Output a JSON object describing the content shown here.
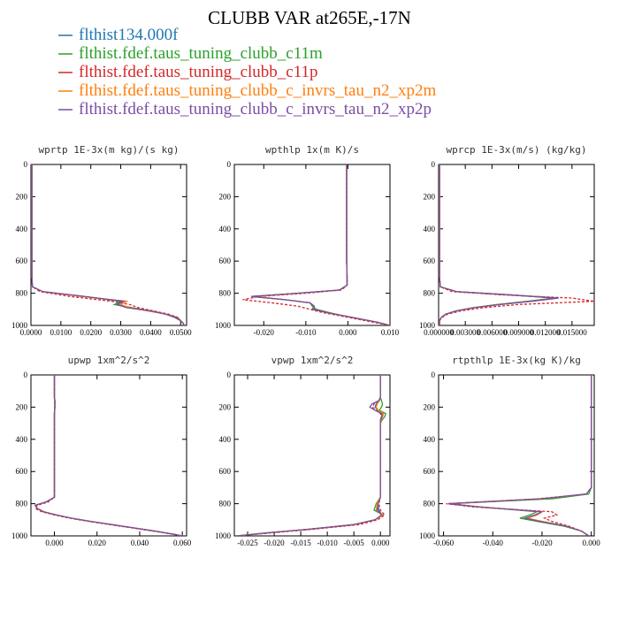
{
  "figure": {
    "title": "CLUBB VAR at265E,-17N"
  },
  "legend": [
    {
      "name": "flthist134.000f",
      "color": "#1f77b4"
    },
    {
      "name": "flthist.fdef.taus_tuning_clubb_c11m",
      "color": "#2ca02c"
    },
    {
      "name": "flthist.fdef.taus_tuning_clubb_c11p",
      "color": "#d62728"
    },
    {
      "name": "flthist.fdef.taus_tuning_clubb_c_invrs_tau_n2_xp2m",
      "color": "#ff7f0e"
    },
    {
      "name": "flthist.fdef.taus_tuning_clubb_c_invrs_tau_n2_xp2p",
      "color": "#7b4ea3"
    }
  ],
  "chart_data": [
    {
      "type": "line",
      "title": "wprtp  1E-3x(m kg)/(s kg)",
      "xlim": [
        0,
        0.052
      ],
      "ylim": [
        1000,
        0
      ],
      "xticks": [
        0,
        0.01,
        0.02,
        0.03,
        0.04,
        0.05
      ],
      "xtick_labels": [
        "0.0000",
        "0.0100",
        "0.0200",
        "0.0300",
        "0.0400",
        "0.0500"
      ],
      "yticks": [
        0,
        200,
        400,
        600,
        800,
        1000
      ],
      "ytick_labels": [
        "0",
        "200",
        "400",
        "600",
        "800",
        "1000"
      ],
      "y": [
        0,
        100,
        200,
        300,
        400,
        500,
        600,
        700,
        760,
        790,
        820,
        850,
        870,
        890,
        910,
        930,
        950,
        970,
        990,
        1000
      ],
      "series": [
        {
          "values": [
            0.0003,
            0.0003,
            0.0003,
            0.0003,
            0.0003,
            0.0003,
            0.0003,
            0.0003,
            0.0005,
            0.004,
            0.018,
            0.03,
            0.028,
            0.033,
            0.04,
            0.045,
            0.048,
            0.05,
            0.051,
            0.051
          ]
        },
        {
          "values": [
            0.0003,
            0.0003,
            0.0003,
            0.0003,
            0.0003,
            0.0003,
            0.0003,
            0.0003,
            0.0005,
            0.004,
            0.017,
            0.031,
            0.028,
            0.034,
            0.04,
            0.045,
            0.049,
            0.05,
            0.051,
            0.051
          ]
        },
        {
          "values": [
            0.0003,
            0.0003,
            0.0003,
            0.0003,
            0.0003,
            0.0003,
            0.0003,
            0.0003,
            0.0005,
            0.003,
            0.013,
            0.027,
            0.033,
            0.036,
            0.041,
            0.046,
            0.049,
            0.05,
            0.051,
            0.051
          ]
        },
        {
          "values": [
            0.0003,
            0.0003,
            0.0003,
            0.0003,
            0.0003,
            0.0003,
            0.0003,
            0.0003,
            0.0005,
            0.004,
            0.017,
            0.032,
            0.03,
            0.033,
            0.039,
            0.045,
            0.048,
            0.05,
            0.051,
            0.051
          ]
        },
        {
          "values": [
            0.0003,
            0.0003,
            0.0003,
            0.0003,
            0.0003,
            0.0003,
            0.0003,
            0.0003,
            0.0005,
            0.004,
            0.018,
            0.031,
            0.029,
            0.032,
            0.04,
            0.045,
            0.048,
            0.05,
            0.051,
            0.051
          ]
        }
      ]
    },
    {
      "type": "line",
      "title": "wpthlp  1x(m K)/s",
      "xlim": [
        -0.027,
        0.01
      ],
      "ylim": [
        1000,
        0
      ],
      "xticks": [
        -0.02,
        -0.01,
        0,
        0.01
      ],
      "xtick_labels": [
        "-0.020",
        "-0.010",
        "0.000",
        "0.010"
      ],
      "yticks": [
        0,
        200,
        400,
        600,
        800,
        1000
      ],
      "ytick_labels": [
        "0",
        "200",
        "400",
        "600",
        "800",
        "1000"
      ],
      "y": [
        0,
        100,
        200,
        300,
        400,
        500,
        600,
        700,
        750,
        780,
        800,
        820,
        840,
        860,
        880,
        900,
        920,
        940,
        960,
        980,
        1000
      ],
      "series": [
        {
          "values": [
            -0.0003,
            -0.0003,
            -0.0003,
            -0.0003,
            -0.0003,
            -0.0003,
            -0.0003,
            -0.0002,
            -0.0002,
            -0.002,
            -0.012,
            -0.023,
            -0.015,
            -0.009,
            -0.008,
            -0.0085,
            -0.005,
            -0.001,
            0.003,
            0.007,
            0.01
          ]
        },
        {
          "values": [
            -0.0003,
            -0.0003,
            -0.0003,
            -0.0003,
            -0.0003,
            -0.0003,
            -0.0003,
            -0.0002,
            -0.0002,
            -0.002,
            -0.012,
            -0.023,
            -0.015,
            -0.009,
            -0.0085,
            -0.0075,
            -0.0045,
            -0.001,
            0.003,
            0.007,
            0.01
          ]
        },
        {
          "values": [
            -0.0003,
            -0.0003,
            -0.0003,
            -0.0003,
            -0.0003,
            -0.0003,
            -0.0003,
            -0.0002,
            -0.0002,
            -0.0015,
            -0.01,
            -0.021,
            -0.025,
            -0.018,
            -0.012,
            -0.009,
            -0.006,
            -0.002,
            0.002,
            0.006,
            0.01
          ]
        },
        {
          "values": [
            -0.0003,
            -0.0003,
            -0.0003,
            -0.0003,
            -0.0003,
            -0.0003,
            -0.0003,
            -0.0002,
            -0.0002,
            -0.002,
            -0.012,
            -0.022,
            -0.015,
            -0.009,
            -0.008,
            -0.008,
            -0.005,
            -0.001,
            0.003,
            0.007,
            0.01
          ]
        },
        {
          "values": [
            -0.0003,
            -0.0003,
            -0.0003,
            -0.0003,
            -0.0003,
            -0.0003,
            -0.0003,
            -0.0002,
            -0.0002,
            -0.002,
            -0.012,
            -0.023,
            -0.015,
            -0.009,
            -0.008,
            -0.008,
            -0.005,
            -0.001,
            0.003,
            0.007,
            0.01
          ]
        }
      ]
    },
    {
      "type": "line",
      "title": "wprcp  1E-3x(m/s) (kg/kg)",
      "xlim": [
        0,
        0.0175
      ],
      "ylim": [
        1000,
        0
      ],
      "xticks": [
        0,
        0.003,
        0.006,
        0.009,
        0.012,
        0.015
      ],
      "xtick_labels": [
        "0.000000",
        "0.003000",
        "0.006000",
        "0.009000",
        "0.012000",
        "0.015000"
      ],
      "yticks": [
        0,
        200,
        400,
        600,
        800,
        1000
      ],
      "ytick_labels": [
        "0",
        "200",
        "400",
        "600",
        "800",
        "1000"
      ],
      "y": [
        0,
        100,
        200,
        300,
        400,
        500,
        600,
        700,
        760,
        790,
        810,
        830,
        850,
        870,
        890,
        910,
        930,
        950,
        970,
        1000
      ],
      "series": [
        {
          "values": [
            0.0001,
            0.0001,
            0.0001,
            0.0001,
            0.0001,
            0.0001,
            0.0001,
            0.0001,
            0.0002,
            0.002,
            0.008,
            0.0135,
            0.0105,
            0.007,
            0.004,
            0.002,
            0.0008,
            0.0003,
            0.0001,
            0.0001
          ]
        },
        {
          "values": [
            0.0001,
            0.0001,
            0.0001,
            0.0001,
            0.0001,
            0.0001,
            0.0001,
            0.0001,
            0.0002,
            0.002,
            0.008,
            0.013,
            0.01,
            0.0065,
            0.0038,
            0.0019,
            0.0008,
            0.0003,
            0.0001,
            0.0001
          ]
        },
        {
          "values": [
            0.0001,
            0.0001,
            0.0001,
            0.0001,
            0.0001,
            0.0001,
            0.0001,
            0.0001,
            0.0002,
            0.0015,
            0.007,
            0.015,
            0.0175,
            0.009,
            0.005,
            0.0025,
            0.001,
            0.0004,
            0.0001,
            0.0001
          ]
        },
        {
          "values": [
            0.0001,
            0.0001,
            0.0001,
            0.0001,
            0.0001,
            0.0001,
            0.0001,
            0.0001,
            0.0002,
            0.002,
            0.008,
            0.0132,
            0.0102,
            0.0068,
            0.0039,
            0.002,
            0.0008,
            0.0003,
            0.0001,
            0.0001
          ]
        },
        {
          "values": [
            0.0001,
            0.0001,
            0.0001,
            0.0001,
            0.0001,
            0.0001,
            0.0001,
            0.0001,
            0.0002,
            0.002,
            0.008,
            0.0133,
            0.0103,
            0.0069,
            0.0039,
            0.002,
            0.0008,
            0.0003,
            0.0001,
            0.0001
          ]
        }
      ]
    },
    {
      "type": "line",
      "title": "upwp  1xm^2/s^2",
      "xlim": [
        -0.011,
        0.062
      ],
      "ylim": [
        1000,
        0
      ],
      "xticks": [
        0,
        0.02,
        0.04,
        0.06
      ],
      "xtick_labels": [
        "0.000",
        "0.020",
        "0.040",
        "0.060"
      ],
      "yticks": [
        0,
        200,
        400,
        600,
        800,
        1000
      ],
      "ytick_labels": [
        "0",
        "200",
        "400",
        "600",
        "800",
        "1000"
      ],
      "y": [
        0,
        100,
        140,
        160,
        200,
        240,
        300,
        400,
        500,
        600,
        700,
        760,
        790,
        810,
        830,
        850,
        870,
        890,
        910,
        930,
        950,
        970,
        990,
        1000
      ],
      "series": [
        {
          "values": [
            0,
            0,
            0,
            0.0002,
            0.0002,
            0,
            0,
            0,
            0,
            0,
            0,
            0,
            -0.004,
            -0.009,
            -0.008,
            -0.005,
            0.001,
            0.008,
            0.017,
            0.027,
            0.037,
            0.047,
            0.056,
            0.06
          ]
        },
        {
          "values": [
            0,
            0,
            0,
            0.0003,
            0.0003,
            0,
            0,
            0,
            0,
            0,
            0,
            0,
            -0.004,
            -0.009,
            -0.008,
            -0.005,
            0.001,
            0.008,
            0.017,
            0.027,
            0.037,
            0.047,
            0.056,
            0.06
          ]
        },
        {
          "values": [
            0,
            0,
            0,
            0.0001,
            0.0001,
            0,
            0,
            0,
            0,
            0,
            0,
            0,
            -0.003,
            -0.008,
            -0.009,
            -0.006,
            0.0,
            0.007,
            0.016,
            0.026,
            0.036,
            0.046,
            0.056,
            0.06
          ]
        },
        {
          "values": [
            0,
            0,
            0,
            0.0002,
            0.0002,
            0,
            0,
            0,
            0,
            0,
            0,
            0,
            -0.004,
            -0.009,
            -0.008,
            -0.005,
            0.001,
            0.008,
            0.017,
            0.027,
            0.037,
            0.047,
            0.056,
            0.06
          ]
        },
        {
          "values": [
            0,
            0,
            0,
            0.0002,
            0.0002,
            0,
            0,
            0,
            0,
            0,
            0,
            0,
            -0.004,
            -0.009,
            -0.008,
            -0.005,
            0.001,
            0.008,
            0.017,
            0.027,
            0.037,
            0.047,
            0.056,
            0.06
          ]
        }
      ]
    },
    {
      "type": "line",
      "title": "vpwp  1xm^2/s^2",
      "xlim": [
        -0.0275,
        0.0018
      ],
      "ylim": [
        1000,
        0
      ],
      "xticks": [
        -0.025,
        -0.02,
        -0.015,
        -0.01,
        -0.005,
        0
      ],
      "xtick_labels": [
        "-0.025",
        "-0.020",
        "-0.015",
        "-0.010",
        "-0.005",
        "0.000"
      ],
      "yticks": [
        0,
        200,
        400,
        600,
        800,
        1000
      ],
      "ytick_labels": [
        "0",
        "200",
        "400",
        "600",
        "800",
        "1000"
      ],
      "y": [
        0,
        100,
        140,
        160,
        180,
        200,
        220,
        240,
        260,
        280,
        300,
        400,
        500,
        600,
        700,
        760,
        800,
        840,
        870,
        900,
        930,
        960,
        980,
        1000
      ],
      "series": [
        {
          "values": [
            0,
            0,
            0,
            -0.0002,
            -0.0008,
            -0.001,
            -0.0005,
            0.0005,
            0.0002,
            0,
            0,
            0,
            0,
            0,
            0,
            0,
            -0.0005,
            -0.0003,
            0.0003,
            -0.001,
            -0.005,
            -0.014,
            -0.021,
            -0.027
          ]
        },
        {
          "values": [
            0,
            0,
            0,
            0.0002,
            0.0004,
            0.0002,
            -0.0002,
            0.001,
            0.0008,
            0.0003,
            0,
            0,
            0,
            0,
            0,
            0,
            -0.0008,
            -0.0012,
            0.0005,
            -0.001,
            -0.005,
            -0.014,
            -0.021,
            -0.027
          ]
        },
        {
          "values": [
            0,
            0,
            0,
            -0.0004,
            -0.0012,
            -0.0015,
            -0.0008,
            0.0,
            0.0002,
            0,
            0,
            0,
            0,
            0,
            0,
            0,
            -0.0003,
            0.0,
            0.0008,
            -0.0005,
            -0.004,
            -0.013,
            -0.02,
            -0.027
          ]
        },
        {
          "values": [
            0,
            0,
            0,
            -0.0002,
            -0.0006,
            -0.0008,
            -0.0004,
            0.0006,
            0.0004,
            0.0001,
            0,
            0,
            0,
            0,
            0,
            0,
            -0.0006,
            -0.0008,
            0.0004,
            -0.001,
            -0.005,
            -0.014,
            -0.021,
            -0.027
          ]
        },
        {
          "values": [
            0,
            0,
            0,
            -0.0003,
            -0.0016,
            -0.002,
            -0.001,
            0.0002,
            0.0003,
            0,
            0,
            0,
            0,
            0,
            0,
            0,
            -0.0004,
            -0.0006,
            0.0002,
            -0.001,
            -0.005,
            -0.014,
            -0.021,
            -0.027
          ]
        }
      ]
    },
    {
      "type": "line",
      "title": "rtpthlp  1E-3x(kg K)/kg",
      "xlim": [
        -0.062,
        0.0012
      ],
      "ylim": [
        1000,
        0
      ],
      "xticks": [
        -0.06,
        -0.04,
        -0.02,
        0
      ],
      "xtick_labels": [
        "-0.060",
        "-0.040",
        "-0.020",
        "0.000"
      ],
      "yticks": [
        0,
        200,
        400,
        600,
        800,
        1000
      ],
      "ytick_labels": [
        "0",
        "200",
        "400",
        "600",
        "800",
        "1000"
      ],
      "y": [
        0,
        100,
        200,
        300,
        400,
        500,
        600,
        700,
        740,
        770,
        800,
        820,
        850,
        870,
        890,
        910,
        940,
        970,
        1000
      ],
      "series": [
        {
          "values": [
            0,
            0,
            0,
            0,
            0,
            0,
            0,
            0,
            -0.002,
            -0.02,
            -0.058,
            -0.045,
            -0.02,
            -0.022,
            -0.026,
            -0.02,
            -0.01,
            -0.004,
            -0.001
          ]
        },
        {
          "values": [
            0,
            0,
            0,
            0,
            0,
            0,
            0,
            0,
            -0.001,
            -0.016,
            -0.058,
            -0.045,
            -0.022,
            -0.025,
            -0.029,
            -0.022,
            -0.011,
            -0.004,
            -0.001
          ]
        },
        {
          "values": [
            0,
            0,
            0,
            0,
            0,
            0,
            0,
            0,
            -0.002,
            -0.022,
            -0.059,
            -0.048,
            -0.016,
            -0.014,
            -0.019,
            -0.016,
            -0.009,
            -0.004,
            -0.001
          ]
        },
        {
          "values": [
            0,
            0,
            0,
            0,
            0,
            0,
            0,
            0,
            -0.002,
            -0.02,
            -0.058,
            -0.045,
            -0.02,
            -0.022,
            -0.026,
            -0.02,
            -0.01,
            -0.004,
            -0.001
          ]
        },
        {
          "values": [
            0,
            0,
            0,
            0,
            0,
            0,
            0,
            0,
            -0.002,
            -0.021,
            -0.058,
            -0.046,
            -0.02,
            -0.023,
            -0.027,
            -0.021,
            -0.01,
            -0.004,
            -0.001
          ]
        }
      ]
    }
  ]
}
